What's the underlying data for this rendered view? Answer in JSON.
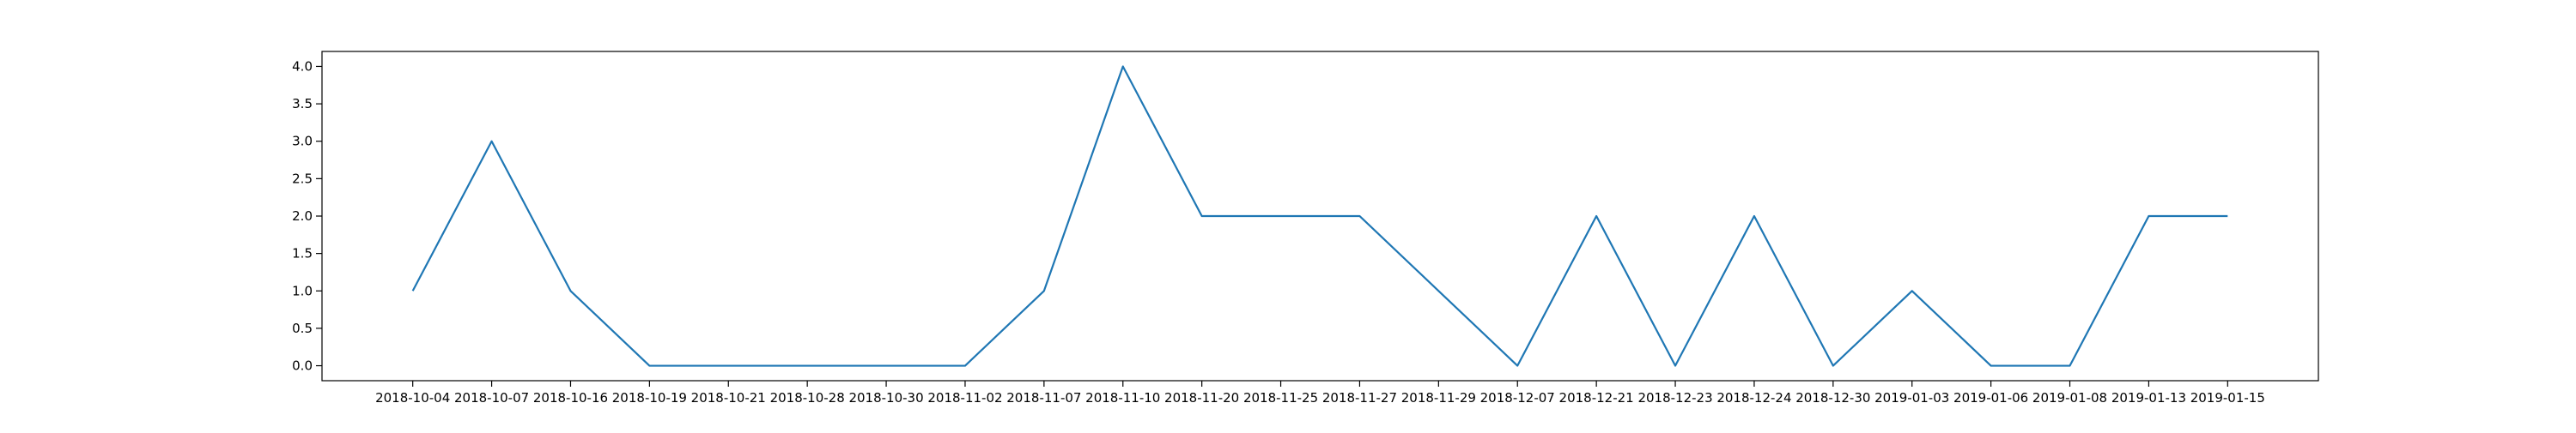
{
  "chart_data": {
    "type": "line",
    "title": "",
    "xlabel": "",
    "ylabel": "",
    "categories": [
      "2018-10-04",
      "2018-10-07",
      "2018-10-16",
      "2018-10-19",
      "2018-10-21",
      "2018-10-28",
      "2018-10-30",
      "2018-11-02",
      "2018-11-07",
      "2018-11-10",
      "2018-11-20",
      "2018-11-25",
      "2018-11-27",
      "2018-11-29",
      "2018-12-07",
      "2018-12-21",
      "2018-12-23",
      "2018-12-24",
      "2018-12-30",
      "2019-01-03",
      "2019-01-06",
      "2019-01-08",
      "2019-01-13",
      "2019-01-15"
    ],
    "series": [
      {
        "values": [
          1,
          3,
          1,
          0,
          0,
          0,
          0,
          0,
          1,
          4,
          2,
          2,
          2,
          1,
          0,
          2,
          0,
          2,
          0,
          1,
          0,
          0,
          2,
          2
        ],
        "color": "#1f77b4"
      }
    ],
    "ylim": [
      -0.2,
      4.2
    ],
    "yticks": [
      0.0,
      0.5,
      1.0,
      1.5,
      2.0,
      2.5,
      3.0,
      3.5,
      4.0
    ],
    "ytick_labels": [
      "0.0",
      "0.5",
      "1.0",
      "1.5",
      "2.0",
      "2.5",
      "3.0",
      "3.5",
      "4.0"
    ],
    "grid": false,
    "legend": "none"
  }
}
